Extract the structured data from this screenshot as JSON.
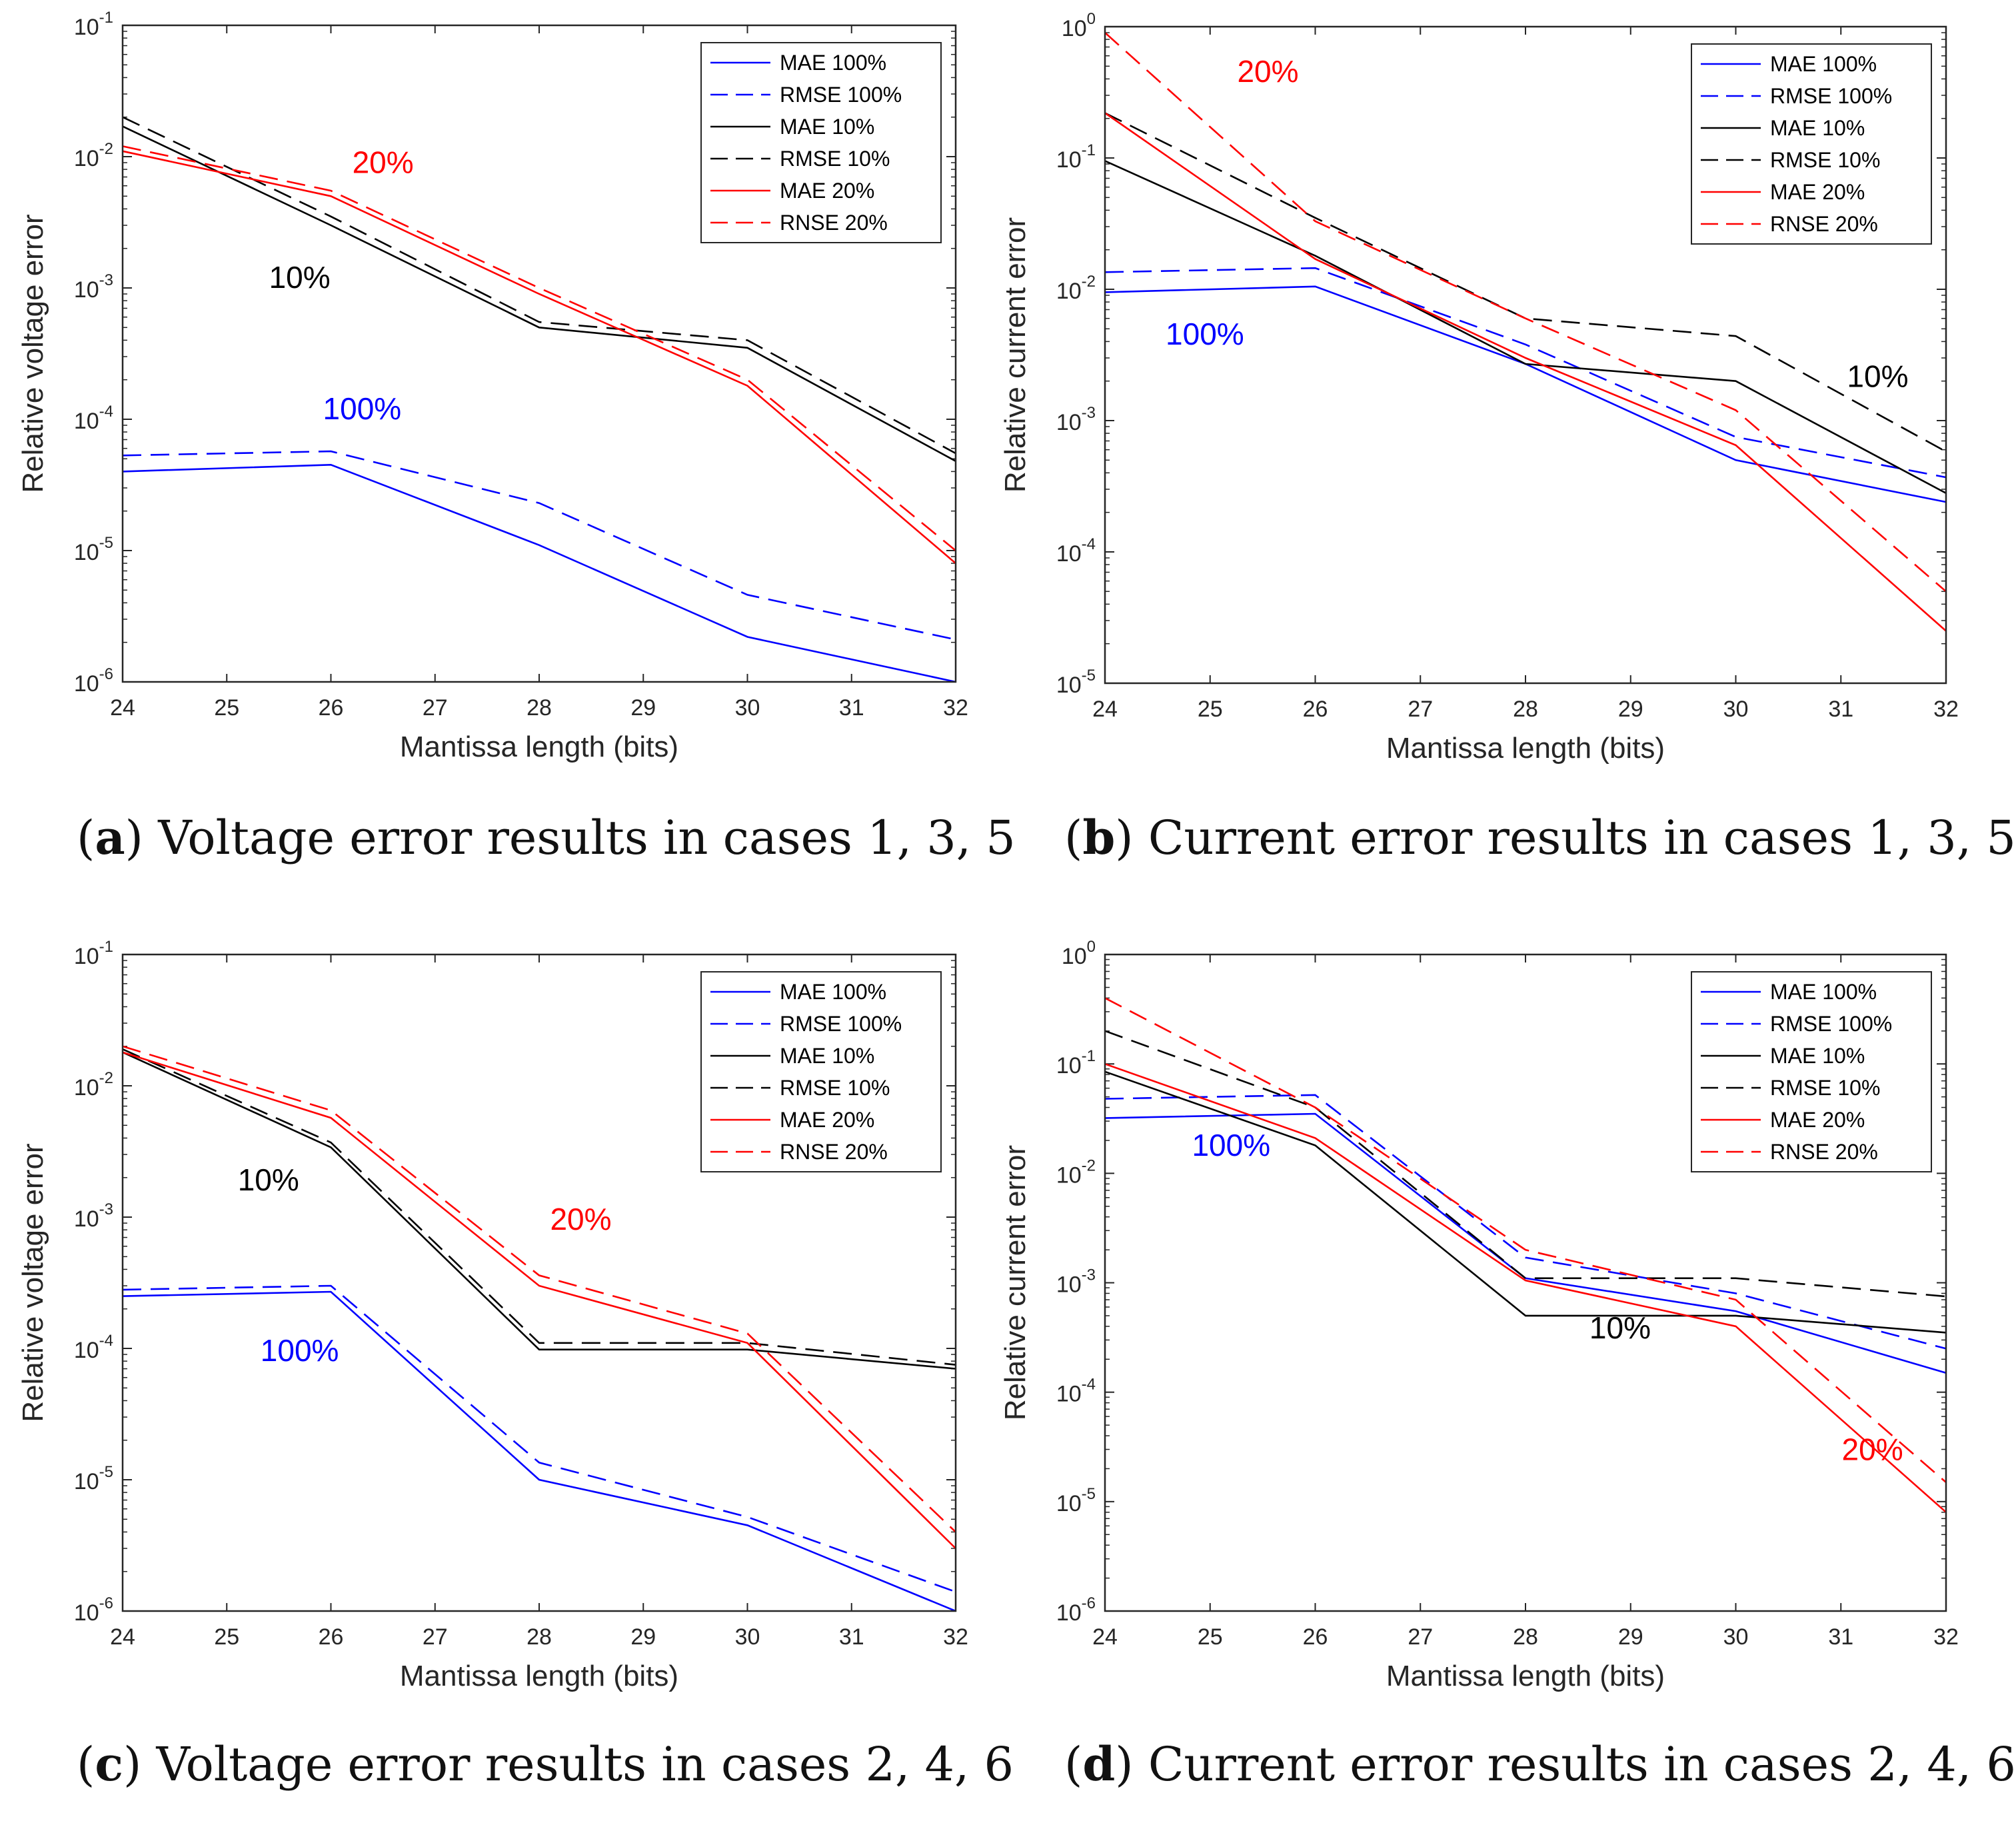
{
  "figure": {
    "panels": [
      {
        "label": "a",
        "caption": "Voltage error results in cases 1, 3, 5"
      },
      {
        "label": "b",
        "caption": "Current error results in cases 1, 3, 5"
      },
      {
        "label": "c",
        "caption": "Voltage error results in cases 2, 4, 6"
      },
      {
        "label": "d",
        "caption": "Current error results in cases 2, 4, 6"
      }
    ]
  },
  "colors": {
    "blue": "#0000ff",
    "black": "#000000",
    "red": "#ff0000"
  },
  "chart_data": [
    {
      "type": "line",
      "panel": "a",
      "xlabel": "Mantissa length (bits)",
      "ylabel": "Relative voltage error",
      "xlim": [
        24,
        32
      ],
      "ylim_exp": [
        -6,
        -1
      ],
      "yscale": "log",
      "x": [
        24,
        26,
        28,
        30,
        32
      ],
      "xticks": [
        "24",
        "25",
        "26",
        "27",
        "28",
        "29",
        "30",
        "31",
        "32"
      ],
      "legend_position": "top-right",
      "series": [
        {
          "name": "MAE 100%",
          "color": "blue",
          "dash": false,
          "values": [
            4e-05,
            4.5e-05,
            1.1e-05,
            2.2e-06,
            1e-06
          ]
        },
        {
          "name": "RMSE 100%",
          "color": "blue",
          "dash": true,
          "values": [
            5.3e-05,
            5.7e-05,
            2.3e-05,
            4.6e-06,
            2.1e-06
          ]
        },
        {
          "name": "MAE 10%",
          "color": "black",
          "dash": false,
          "values": [
            0.017,
            0.003,
            0.0005,
            0.00035,
            4.8e-05
          ]
        },
        {
          "name": "RMSE 10%",
          "color": "black",
          "dash": true,
          "values": [
            0.02,
            0.0035,
            0.00055,
            0.0004,
            5.5e-05
          ]
        },
        {
          "name": "MAE 20%",
          "color": "red",
          "dash": false,
          "values": [
            0.011,
            0.005,
            0.0009,
            0.00018,
            8e-06
          ]
        },
        {
          "name": "RNSE 20%",
          "color": "red",
          "dash": true,
          "values": [
            0.012,
            0.0055,
            0.001,
            0.0002,
            1e-05
          ]
        }
      ],
      "annotations": [
        {
          "text": "20%",
          "color": "red",
          "x": 26.5,
          "y": 0.0075
        },
        {
          "text": "10%",
          "color": "black",
          "x": 25.7,
          "y": 0.001
        },
        {
          "text": "100%",
          "color": "blue",
          "x": 26.3,
          "y": 0.0001
        }
      ]
    },
    {
      "type": "line",
      "panel": "b",
      "xlabel": "Mantissa length (bits)",
      "ylabel": "Relative current error",
      "xlim": [
        24,
        32
      ],
      "ylim_exp": [
        -5,
        0
      ],
      "yscale": "log",
      "x": [
        24,
        26,
        28,
        30,
        32
      ],
      "xticks": [
        "24",
        "25",
        "26",
        "27",
        "28",
        "29",
        "30",
        "31",
        "32"
      ],
      "legend_position": "top-right",
      "series": [
        {
          "name": "MAE 100%",
          "color": "blue",
          "dash": false,
          "values": [
            0.0095,
            0.0105,
            0.0027,
            0.0005,
            0.00024
          ]
        },
        {
          "name": "RMSE 100%",
          "color": "blue",
          "dash": true,
          "values": [
            0.0135,
            0.0145,
            0.0038,
            0.00075,
            0.00037
          ]
        },
        {
          "name": "MAE 10%",
          "color": "black",
          "dash": false,
          "values": [
            0.095,
            0.018,
            0.0027,
            0.002,
            0.00028
          ]
        },
        {
          "name": "RMSE 10%",
          "color": "black",
          "dash": true,
          "values": [
            0.22,
            0.035,
            0.006,
            0.0044,
            0.00058
          ]
        },
        {
          "name": "MAE 20%",
          "color": "red",
          "dash": false,
          "values": [
            0.22,
            0.017,
            0.003,
            0.00065,
            2.5e-05
          ]
        },
        {
          "name": "RNSE 20%",
          "color": "red",
          "dash": true,
          "values": [
            0.9,
            0.033,
            0.006,
            0.0012,
            5e-05
          ]
        }
      ],
      "annotations": [
        {
          "text": "20%",
          "color": "red",
          "x": 25.55,
          "y": 0.38
        },
        {
          "text": "100%",
          "color": "blue",
          "x": 24.95,
          "y": 0.0038
        },
        {
          "text": "10%",
          "color": "black",
          "x": 31.35,
          "y": 0.0018
        }
      ]
    },
    {
      "type": "line",
      "panel": "c",
      "xlabel": "Mantissa length (bits)",
      "ylabel": "Relative voltage error",
      "xlim": [
        24,
        32
      ],
      "ylim_exp": [
        -6,
        -1
      ],
      "yscale": "log",
      "x": [
        24,
        26,
        28,
        30,
        32
      ],
      "xticks": [
        "24",
        "25",
        "26",
        "27",
        "28",
        "29",
        "30",
        "31",
        "32"
      ],
      "legend_position": "top-right",
      "series": [
        {
          "name": "MAE 100%",
          "color": "blue",
          "dash": false,
          "values": [
            0.00025,
            0.00027,
            1e-05,
            4.5e-06,
            1e-06
          ]
        },
        {
          "name": "RMSE 100%",
          "color": "blue",
          "dash": true,
          "values": [
            0.00028,
            0.0003,
            1.35e-05,
            5.2e-06,
            1.4e-06
          ]
        },
        {
          "name": "MAE 10%",
          "color": "black",
          "dash": false,
          "values": [
            0.018,
            0.0034,
            9.8e-05,
            9.8e-05,
            7e-05
          ]
        },
        {
          "name": "RMSE 10%",
          "color": "black",
          "dash": true,
          "values": [
            0.019,
            0.0037,
            0.00011,
            0.00011,
            7.5e-05
          ]
        },
        {
          "name": "MAE 20%",
          "color": "red",
          "dash": false,
          "values": [
            0.018,
            0.0057,
            0.0003,
            0.00011,
            3e-06
          ]
        },
        {
          "name": "RNSE 20%",
          "color": "red",
          "dash": true,
          "values": [
            0.02,
            0.0065,
            0.00036,
            0.00013,
            4e-06
          ]
        }
      ],
      "annotations": [
        {
          "text": "10%",
          "color": "black",
          "x": 25.4,
          "y": 0.0016
        },
        {
          "text": "20%",
          "color": "red",
          "x": 28.4,
          "y": 0.0008
        },
        {
          "text": "100%",
          "color": "blue",
          "x": 25.7,
          "y": 8e-05
        }
      ]
    },
    {
      "type": "line",
      "panel": "d",
      "xlabel": "Mantissa length (bits)",
      "ylabel": "Relative current error",
      "xlim": [
        24,
        32
      ],
      "ylim_exp": [
        -6,
        0
      ],
      "yscale": "log",
      "x": [
        24,
        26,
        28,
        30,
        32
      ],
      "xticks": [
        "24",
        "25",
        "26",
        "27",
        "28",
        "29",
        "30",
        "31",
        "32"
      ],
      "legend_position": "top-right",
      "series": [
        {
          "name": "MAE 100%",
          "color": "blue",
          "dash": false,
          "values": [
            0.032,
            0.035,
            0.0011,
            0.00055,
            0.00015
          ]
        },
        {
          "name": "RMSE 100%",
          "color": "blue",
          "dash": true,
          "values": [
            0.048,
            0.052,
            0.0017,
            0.0008,
            0.00025
          ]
        },
        {
          "name": "MAE 10%",
          "color": "black",
          "dash": false,
          "values": [
            0.085,
            0.018,
            0.0005,
            0.0005,
            0.00035
          ]
        },
        {
          "name": "RMSE 10%",
          "color": "black",
          "dash": true,
          "values": [
            0.2,
            0.04,
            0.0011,
            0.0011,
            0.00075
          ]
        },
        {
          "name": "MAE 20%",
          "color": "red",
          "dash": false,
          "values": [
            0.1,
            0.021,
            0.00105,
            0.0004,
            8e-06
          ]
        },
        {
          "name": "RNSE 20%",
          "color": "red",
          "dash": true,
          "values": [
            0.4,
            0.04,
            0.002,
            0.0007,
            1.5e-05
          ]
        }
      ],
      "annotations": [
        {
          "text": "100%",
          "color": "blue",
          "x": 25.2,
          "y": 0.0145
        },
        {
          "text": "10%",
          "color": "black",
          "x": 28.9,
          "y": 0.00031
        },
        {
          "text": "20%",
          "color": "red",
          "x": 31.3,
          "y": 2.4e-05
        }
      ]
    }
  ]
}
